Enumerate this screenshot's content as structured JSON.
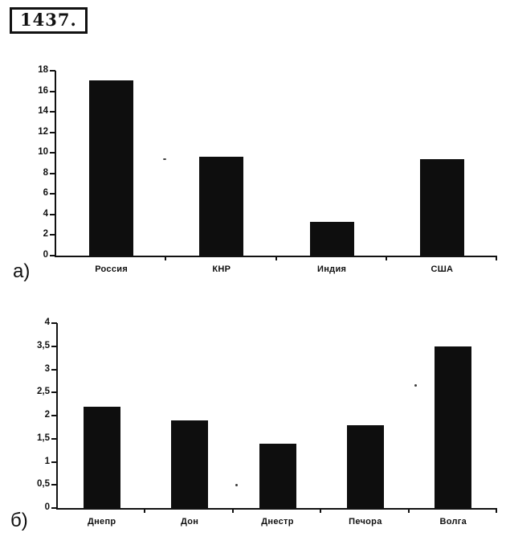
{
  "problem_number": "1437.",
  "colors": {
    "ink": "#111111",
    "bar": "#0e0e0e",
    "background": "#ffffff"
  },
  "chart_data": [
    {
      "id": "a",
      "type": "bar",
      "label": "а)",
      "title": "",
      "xlabel": "",
      "ylabel": "",
      "categories": [
        "Россия",
        "КНР",
        "Индия",
        "США"
      ],
      "values": [
        17.1,
        9.6,
        3.3,
        9.4
      ],
      "ylim": [
        0,
        18
      ],
      "ytick_step": 2,
      "ytick_labels": [
        "0",
        "2",
        "4",
        "6",
        "8",
        "10",
        "12",
        "14",
        "16",
        "18"
      ],
      "grid": false,
      "legend": null,
      "bar_color": "#0e0e0e"
    },
    {
      "id": "b",
      "type": "bar",
      "label": "б)",
      "title": "",
      "xlabel": "",
      "ylabel": "",
      "categories": [
        "Днепр",
        "Дон",
        "Днестр",
        "Печора",
        "Волга"
      ],
      "values": [
        2.2,
        1.9,
        1.4,
        1.8,
        3.5
      ],
      "ylim": [
        0,
        4
      ],
      "ytick_step": 0.5,
      "ytick_labels": [
        "0",
        "0,5",
        "1",
        "1,5",
        "2",
        "2,5",
        "3",
        "3,5",
        "4"
      ],
      "grid": false,
      "legend": null,
      "bar_color": "#0e0e0e"
    }
  ]
}
